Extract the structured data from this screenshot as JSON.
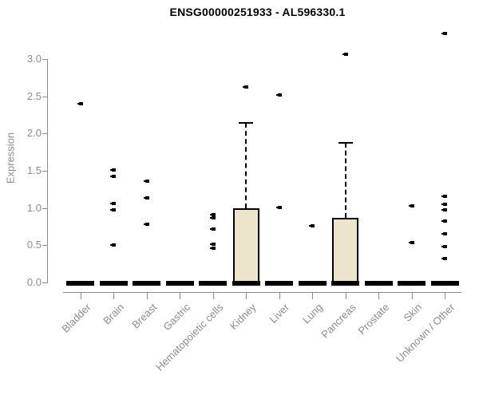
{
  "chart_data": {
    "type": "box",
    "title": "ENSG00000251933 - AL596330.1",
    "ylabel": "Expression",
    "xlabel": "",
    "ylim": [
      0,
      3.4
    ],
    "ytick_values": [
      0,
      0.5,
      1,
      1.5,
      2,
      2.5,
      3
    ],
    "ytick_labels": [
      "0.0",
      "0.5",
      "1.0",
      "1.5",
      "2.0",
      "2.5",
      "3.0"
    ],
    "grid": false,
    "legend_position": "none",
    "x_label_rotation": 45,
    "categories": [
      "Bladder",
      "Brain",
      "Breast",
      "Gastric",
      "Hematopoietic cells",
      "Kidney",
      "Liver",
      "Lung",
      "Pancreas",
      "Prostate",
      "Skin",
      "Unknown / Other"
    ],
    "boxes": [
      {
        "category": "Bladder",
        "median": 0,
        "q1": 0,
        "q3": 0,
        "whisker_high": 0,
        "points": [
          2.4
        ]
      },
      {
        "category": "Brain",
        "median": 0,
        "q1": 0,
        "q3": 0,
        "whisker_high": 0,
        "points": [
          1.51,
          1.43,
          1.06,
          0.98,
          0.5
        ]
      },
      {
        "category": "Breast",
        "median": 0,
        "q1": 0,
        "q3": 0,
        "whisker_high": 0,
        "points": [
          1.36,
          1.14,
          0.78
        ]
      },
      {
        "category": "Gastric",
        "median": 0,
        "q1": 0,
        "q3": 0,
        "whisker_high": 0,
        "points": []
      },
      {
        "category": "Hematopoietic cells",
        "median": 0,
        "q1": 0,
        "q3": 0,
        "whisker_high": 0,
        "points": [
          0.91,
          0.87,
          0.72,
          0.51,
          0.46
        ]
      },
      {
        "category": "Kidney",
        "median": 0,
        "q1": 0,
        "q3": 1.0,
        "whisker_high": 2.14,
        "points": [
          2.63
        ]
      },
      {
        "category": "Liver",
        "median": 0,
        "q1": 0,
        "q3": 0,
        "whisker_high": 0,
        "points": [
          2.52,
          1.01
        ]
      },
      {
        "category": "Lung",
        "median": 0,
        "q1": 0,
        "q3": 0,
        "whisker_high": 0,
        "points": [
          0.76
        ]
      },
      {
        "category": "Pancreas",
        "median": 0,
        "q1": 0,
        "q3": 0.87,
        "whisker_high": 1.88,
        "points": [
          3.06
        ]
      },
      {
        "category": "Prostate",
        "median": 0,
        "q1": 0,
        "q3": 0,
        "whisker_high": 0,
        "points": []
      },
      {
        "category": "Skin",
        "median": 0,
        "q1": 0,
        "q3": 0,
        "whisker_high": 0,
        "points": [
          1.03,
          0.54
        ]
      },
      {
        "category": "Unknown / Other",
        "median": 0,
        "q1": 0,
        "q3": 0,
        "whisker_high": 0,
        "points": [
          3.34,
          1.16,
          1.05,
          0.98,
          0.82,
          0.65,
          0.48,
          0.32
        ]
      }
    ],
    "colors": {
      "box_fill": "#ECE5CC",
      "box_border": "#000000",
      "median": "#000000",
      "point": "#000000",
      "axis": "#8C8C8C",
      "tick_label": "#8C8C8C",
      "title": "#000000",
      "background": "#FFFFFF"
    }
  }
}
